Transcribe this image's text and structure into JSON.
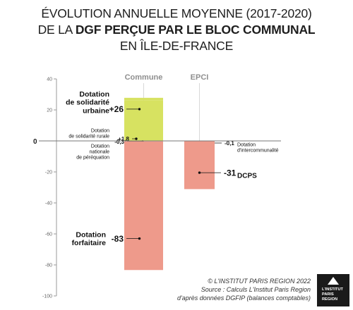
{
  "title": {
    "line1": "ÉVOLUTION ANNUELLE MOYENNE (2017-2020)",
    "line2_prefix": "DE LA ",
    "line2_bold": "DGF PERÇUE PAR LE BLOC COMMUNAL",
    "line3": "EN ÎLE-DE-FRANCE"
  },
  "chart_data": {
    "type": "bar",
    "subtype": "stacked",
    "categories": [
      "Commune",
      "EPCI"
    ],
    "ylim": [
      -100,
      40
    ],
    "yticks": [
      40,
      20,
      0,
      -20,
      -40,
      -60,
      -80,
      -100
    ],
    "zero_label": "0",
    "grid": false,
    "colors": {
      "positive": "#d7e261",
      "negative": "#ee9a8b",
      "axis": "#9a9a9a"
    },
    "series": [
      {
        "category": "Commune",
        "values": [
          {
            "value": 26,
            "label": "+26",
            "name": "Dotation de solidarité urbaine",
            "name_lines": [
              "Dotation",
              "de solidarité",
              "urbaine"
            ],
            "side": "left",
            "big": true
          },
          {
            "value": 1.8,
            "label": "+1,8",
            "name": "Dotation de solidarité rurale",
            "name_lines": [
              "Dotation",
              "de solidarité rurale"
            ],
            "side": "left",
            "big": false
          },
          {
            "value": -0.3,
            "label": "-0,3",
            "name": "Dotation nationale de péréquation",
            "name_lines": [
              "Dotation",
              "nationale",
              "de péréquation"
            ],
            "side": "left",
            "big": false
          },
          {
            "value": -83,
            "label": "-83",
            "name": "Dotation forfaitaire",
            "name_lines": [
              "Dotation",
              "forfaitaire"
            ],
            "side": "left",
            "big": true
          }
        ]
      },
      {
        "category": "EPCI",
        "values": [
          {
            "value": -0.1,
            "label": "-0,1",
            "name": "Dotation d'intercommunalité",
            "name_lines": [
              "Dotation",
              "d'intercommunalité"
            ],
            "side": "right",
            "big": false
          },
          {
            "value": -31,
            "label": "-31",
            "name": "DCPS",
            "name_lines": [
              "DCPS"
            ],
            "side": "right",
            "big": true
          }
        ]
      }
    ]
  },
  "footer": {
    "copyright": "© L'INSTITUT PARIS REGION 2022",
    "source_line1": "Source : Calculs L'Institut Paris Region",
    "source_line2": "d'après données DGFIP (balances comptables)"
  },
  "logo": {
    "lines": [
      "L'INSTITUT",
      "PARIS",
      "REGION"
    ]
  }
}
